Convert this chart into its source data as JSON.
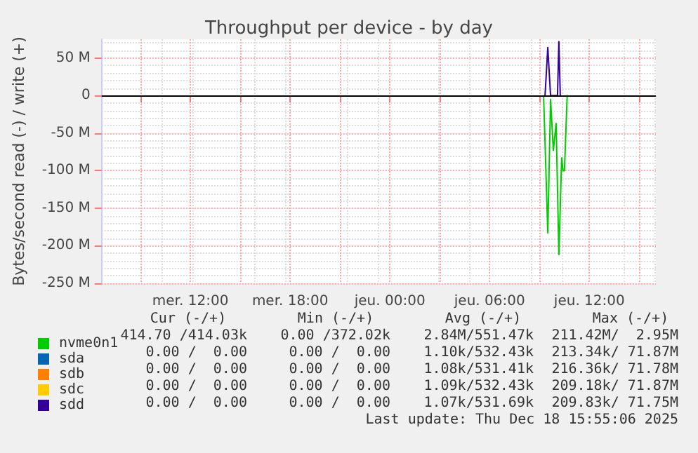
{
  "chart_data": {
    "type": "line",
    "title": "Throughput per device - by day",
    "ylabel": "Bytes/second read (-) / write (+)",
    "xlim": [
      "2025-12-17T06:40",
      "2025-12-18T16:00"
    ],
    "xticks": [
      {
        "value": "2025-12-17T09:00",
        "label": null
      },
      {
        "value": "2025-12-17T12:00",
        "label": "mer. 12:00"
      },
      {
        "value": "2025-12-17T15:00",
        "label": null
      },
      {
        "value": "2025-12-17T18:00",
        "label": "mer. 18:00"
      },
      {
        "value": "2025-12-17T21:00",
        "label": null
      },
      {
        "value": "2025-12-18T00:00",
        "label": "jeu. 00:00"
      },
      {
        "value": "2025-12-18T03:00",
        "label": null
      },
      {
        "value": "2025-12-18T06:00",
        "label": "jeu. 06:00"
      },
      {
        "value": "2025-12-18T09:00",
        "label": null
      },
      {
        "value": "2025-12-18T12:00",
        "label": "jeu. 12:00"
      },
      {
        "value": "2025-12-18T15:00",
        "label": null
      }
    ],
    "ylim": [
      -250,
      75
    ],
    "yticks": [
      {
        "value": -250,
        "label": "-250 M"
      },
      {
        "value": -200,
        "label": "-200 M"
      },
      {
        "value": -150,
        "label": "-150 M"
      },
      {
        "value": -100,
        "label": "-100 M"
      },
      {
        "value": -50,
        "label": "-50 M"
      },
      0,
      {
        "value": 50,
        "label": "50 M"
      }
    ],
    "grid": true,
    "legend": "bottom left",
    "marker": "none",
    "line_style": "solid",
    "series": [
      {
        "name": "nvme0n1",
        "color": "#00cc00",
        "x": [
          "2025-12-18T09:15",
          "2025-12-18T09:30",
          "2025-12-18T09:40",
          "2025-12-18T09:50",
          "2025-12-18T10:00",
          "2025-12-18T10:10",
          "2025-12-18T10:20",
          "2025-12-18T10:25",
          "2025-12-18T10:30",
          "2025-12-18T10:40"
        ],
        "values": [
          -2,
          -183,
          -5,
          -73,
          -37,
          -212,
          -83,
          -100,
          -100,
          0
        ]
      },
      {
        "name": "sda",
        "color": "#0066b3"
      },
      {
        "name": "sdb",
        "color": "#ff8000"
      },
      {
        "name": "sdc",
        "color": "#ffcc00"
      },
      {
        "name": "sdd",
        "color": "#330099",
        "x": [
          "2025-12-18T09:20",
          "2025-12-18T09:30",
          "2025-12-18T09:40",
          "2025-12-18T10:05",
          "2025-12-18T10:10",
          "2025-12-18T10:15"
        ],
        "values": [
          0,
          64,
          0,
          0,
          72,
          0
        ]
      }
    ],
    "ref_lines": [
      {
        "axis": "y",
        "value": 0,
        "color": "#000000"
      }
    ],
    "annotations": [
      "Cur (-/+)",
      "Min (-/+)",
      "Avg (-/+)",
      "Max (-/+)",
      "414.70 /414.03k",
      "0.00 /372.02k",
      "2.84M/551.47k",
      "211.42M/  2.95M",
      "0.00 /  0.00",
      "0.00 /  0.00",
      "1.10k/532.43k",
      "213.34k/ 71.87M",
      "0.00 /  0.00",
      "0.00 /  0.00",
      "1.08k/531.41k",
      "216.36k/ 71.78M",
      "0.00 /  0.00",
      "0.00 /  0.00",
      "1.09k/532.43k",
      "209.18k/ 71.87M",
      "0.00 /  0.00",
      "0.00 /  0.00",
      "1.07k/531.69k",
      "209.83k/ 71.75M",
      "Last update: Thu Dec 18 15:55:06 2025"
    ]
  }
}
